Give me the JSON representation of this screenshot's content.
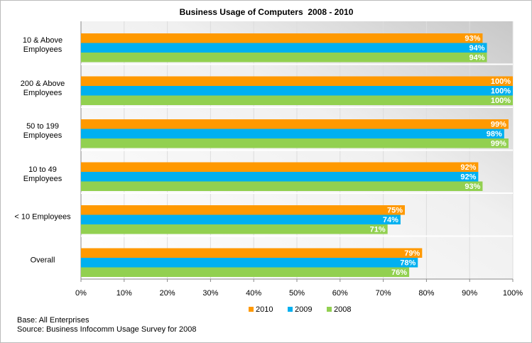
{
  "chart_data": {
    "type": "hbar",
    "title": "Business Usage of Computers  2008 - 2010",
    "categories": [
      "10 & Above Employees",
      "200 & Above Employees",
      "50 to 199 Employees",
      "10 to 49 Employees",
      "< 10 Employees",
      "Overall"
    ],
    "series": [
      {
        "name": "2010",
        "color": "#ff9900",
        "values": [
          93,
          100,
          99,
          92,
          75,
          79
        ],
        "value_labels": [
          "93%",
          "100%",
          "99%",
          "92%",
          "75%",
          "79%"
        ]
      },
      {
        "name": "2009",
        "color": "#00b0f0",
        "values": [
          94,
          100,
          98,
          92,
          74,
          78
        ],
        "value_labels": [
          "94%",
          "100%",
          "98%",
          "92%",
          "74%",
          "78%"
        ]
      },
      {
        "name": "2008",
        "color": "#92d050",
        "values": [
          94,
          100,
          99,
          93,
          71,
          76
        ],
        "value_labels": [
          "94%",
          "100%",
          "99%",
          "93%",
          "71%",
          "76%"
        ]
      }
    ],
    "xlim": [
      0,
      100
    ],
    "xticks": [
      {
        "value": 0,
        "label": "0%"
      },
      {
        "value": 10,
        "label": "10%"
      },
      {
        "value": 20,
        "label": "20%"
      },
      {
        "value": 30,
        "label": "30%"
      },
      {
        "value": 40,
        "label": "40%"
      },
      {
        "value": 50,
        "label": "50%"
      },
      {
        "value": 60,
        "label": "60%"
      },
      {
        "value": 70,
        "label": "70%"
      },
      {
        "value": 80,
        "label": "80%"
      },
      {
        "value": 90,
        "label": "90%"
      },
      {
        "value": 100,
        "label": "100%"
      }
    ],
    "grid": true,
    "legend": "bottom",
    "notes": [
      "Base: All Enterprises",
      "Source: Business Infocomm Usage Survey for 2008"
    ]
  }
}
